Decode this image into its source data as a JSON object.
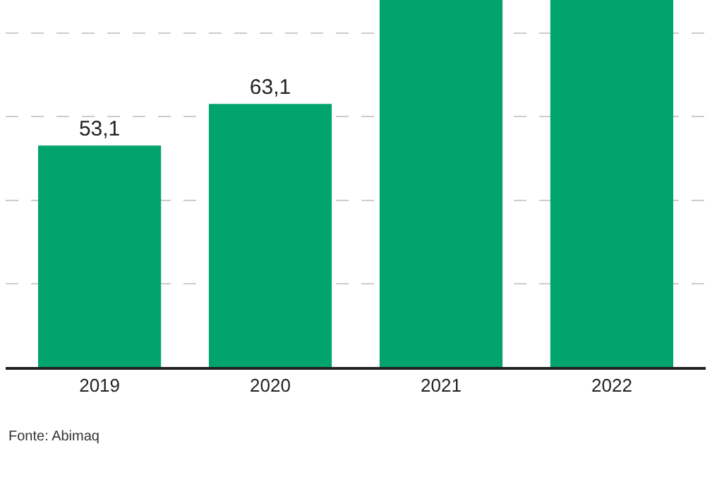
{
  "chart_data": {
    "type": "bar",
    "categories": [
      "2019",
      "2020",
      "2021",
      "2022"
    ],
    "values": [
      53.1,
      63.1,
      88,
      88
    ],
    "value_labels": [
      "53,1",
      "63,1",
      null,
      null
    ],
    "color": "#00a46c",
    "ylim": [
      0,
      88
    ],
    "yticks": [
      {
        "value": 20,
        "label": null
      },
      {
        "value": 40,
        "label": null
      },
      {
        "value": 60,
        "label": null
      },
      {
        "value": 80,
        "label": null
      }
    ],
    "grid": "y",
    "tick_labels": "x",
    "annotations": [
      "Fonte: Abimaq"
    ]
  }
}
